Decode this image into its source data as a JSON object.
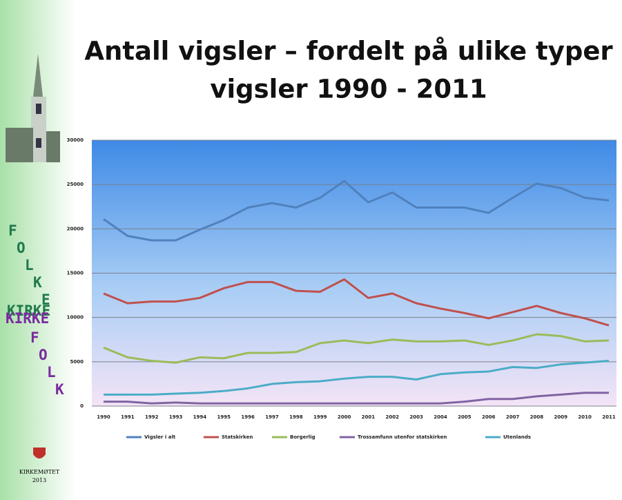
{
  "chart_data": {
    "type": "line",
    "title": [
      "Antall vigsler – fordelt på ulike typer",
      "vigsler 1990 - 2011"
    ],
    "categories": [
      "1990",
      "1991",
      "1992",
      "1993",
      "1994",
      "1995",
      "1996",
      "1997",
      "1998",
      "1999",
      "2000",
      "2001",
      "2002",
      "2003",
      "2004",
      "2005",
      "2006",
      "2007",
      "2008",
      "2009",
      "2010",
      "2011"
    ],
    "series": [
      {
        "name": "Vigsler i alt",
        "color": "#4f81bd",
        "values": [
          21100,
          19200,
          18700,
          18700,
          19900,
          21000,
          22400,
          22900,
          22400,
          23500,
          25400,
          23000,
          24100,
          22400,
          22400,
          22400,
          21800,
          23500,
          25100,
          24600,
          23500,
          23200
        ]
      },
      {
        "name": "Statskirken",
        "color": "#c0504d",
        "values": [
          12700,
          11600,
          11800,
          11800,
          12200,
          13300,
          14000,
          14000,
          13000,
          12900,
          14300,
          12200,
          12700,
          11600,
          11000,
          10500,
          9900,
          10600,
          11300,
          10500,
          9900,
          9100
        ]
      },
      {
        "name": "Borgerlig",
        "color": "#9bbb59",
        "values": [
          6600,
          5500,
          5100,
          4900,
          5500,
          5400,
          6000,
          6000,
          6100,
          7100,
          7400,
          7100,
          7500,
          7300,
          7300,
          7400,
          6900,
          7400,
          8100,
          7900,
          7300,
          7400
        ]
      },
      {
        "name": "Trossamfunn utenfor statskirken",
        "color": "#8064a2",
        "values": [
          500,
          500,
          300,
          400,
          300,
          300,
          300,
          300,
          300,
          300,
          300,
          300,
          300,
          300,
          300,
          500,
          800,
          800,
          1100,
          1300,
          1500,
          1500
        ]
      },
      {
        "name": "Utenlands",
        "color": "#4bacc6",
        "values": [
          1300,
          1300,
          1300,
          1400,
          1500,
          1700,
          2000,
          2500,
          2700,
          2800,
          3100,
          3300,
          3300,
          3000,
          3600,
          3800,
          3900,
          4400,
          4300,
          4700,
          4900,
          5100
        ]
      }
    ],
    "ylim": [
      0,
      30000
    ],
    "yticks": [
      0,
      5000,
      10000,
      15000,
      20000,
      25000,
      30000
    ],
    "grid": true,
    "legend": "bottom"
  },
  "sidebar": {
    "folke": [
      "F",
      "O",
      "L",
      "K",
      "E"
    ],
    "kirke_green": "KIRKE",
    "kirke_purple": "KIRKE",
    "folk": [
      "F",
      "O",
      "L",
      "K"
    ],
    "logo": [
      "KIRKEMØTET",
      "2013"
    ]
  }
}
